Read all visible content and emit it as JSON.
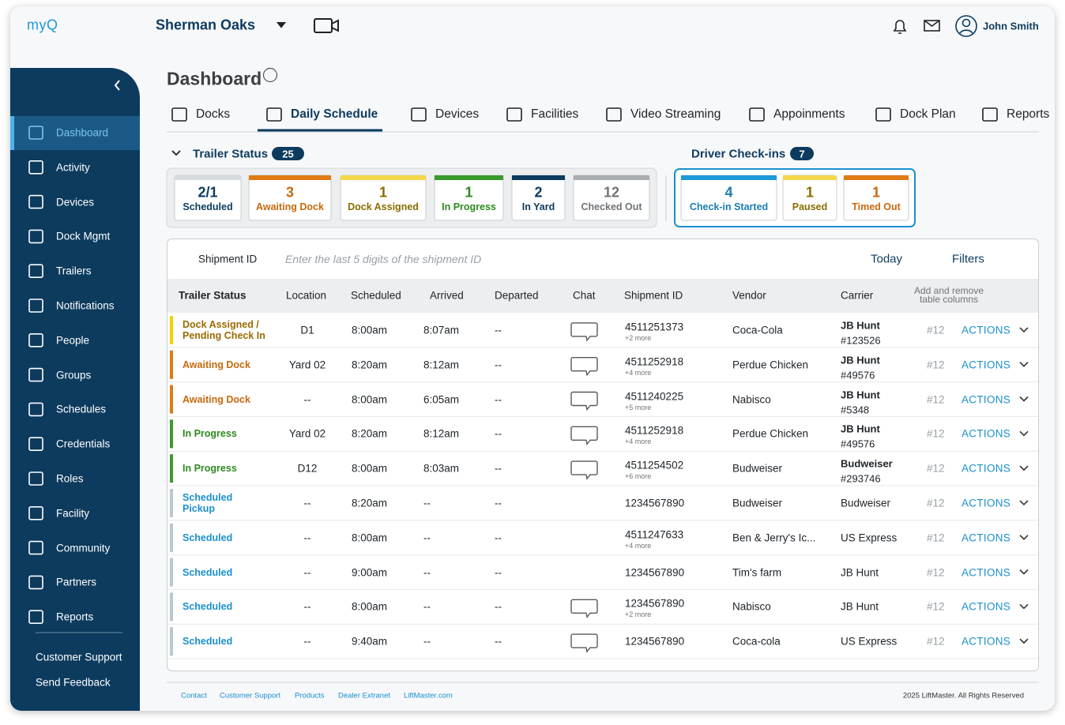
{
  "header": {
    "logo": "myQ",
    "location": "Sherman Oaks",
    "user": "John Smith"
  },
  "sidebar": {
    "items": [
      {
        "label": "Dashboard",
        "active": true
      },
      {
        "label": "Activity"
      },
      {
        "label": "Devices"
      },
      {
        "label": "Dock Mgmt"
      },
      {
        "label": "Trailers"
      },
      {
        "label": "Notifications"
      },
      {
        "label": "People"
      },
      {
        "label": "Groups"
      },
      {
        "label": "Schedules"
      },
      {
        "label": "Credentials"
      },
      {
        "label": "Roles"
      },
      {
        "label": "Facility"
      },
      {
        "label": "Community"
      },
      {
        "label": "Partners"
      },
      {
        "label": "Reports"
      }
    ],
    "links": [
      "Customer Support",
      "Send Feedback"
    ]
  },
  "page": {
    "title": "Dashboard",
    "tabs": [
      {
        "label": "Docks"
      },
      {
        "label": "Daily Schedule",
        "active": true
      },
      {
        "label": "Devices"
      },
      {
        "label": "Facilities"
      },
      {
        "label": "Video Streaming"
      },
      {
        "label": "Appoinments"
      },
      {
        "label": "Dock Plan"
      },
      {
        "label": "Reports"
      }
    ]
  },
  "trailer_status": {
    "title": "Trailer Status",
    "count": 25,
    "cards": [
      {
        "value": "2/1",
        "label": "Scheduled",
        "bar": "#d6dbe0",
        "color": "#0c3b5e"
      },
      {
        "value": 3,
        "label": "Awaiting Dock",
        "bar": "#df7b14",
        "color": "#c8690c"
      },
      {
        "value": 1,
        "label": "Dock Assigned",
        "bar": "#f4d84a",
        "color": "#8a6d00"
      },
      {
        "value": 1,
        "label": "In Progress",
        "bar": "#3a9a2c",
        "color": "#2e8a1f"
      },
      {
        "value": 2,
        "label": "In Yard",
        "bar": "#0c3b5e",
        "color": "#0c3b5e"
      },
      {
        "value": 12,
        "label": "Checked Out",
        "bar": "#a9adb1",
        "color": "#6f7478"
      }
    ]
  },
  "driver_checkins": {
    "title": "Driver Check-ins",
    "count": 7,
    "cards": [
      {
        "value": 4,
        "label": "Check-in Started",
        "bar": "#1c9ad6",
        "color": "#1b7db5"
      },
      {
        "value": 1,
        "label": "Paused",
        "bar": "#f4d84a",
        "color": "#8a6d00"
      },
      {
        "value": 1,
        "label": "Timed Out",
        "bar": "#df7b14",
        "color": "#c8690c"
      }
    ]
  },
  "search": {
    "field": "Shipment ID",
    "placeholder": "Enter the last 5 digits of the shipment ID",
    "date": "Today",
    "filters": "Filters"
  },
  "table": {
    "columns": [
      "Trailer Status",
      "Location",
      "Scheduled",
      "Arrived",
      "Departed",
      "Chat",
      "Shipment ID",
      "Vendor",
      "Carrier"
    ],
    "column_settings": "Add and remove\ntable columns",
    "rows": [
      {
        "status": "Dock Assigned /\nPending Check In",
        "color": "#f5d000",
        "text_color": "#9a6b00",
        "location": "D1",
        "scheduled": "8:00am",
        "arrived": "8:07am",
        "departed": "--",
        "chat": true,
        "shipment_id": "4511251373",
        "more": "+2 more",
        "vendor": "Coca-Cola",
        "carrier": "JB Hunt",
        "carrier_id": "#123526",
        "ref": "#12",
        "action": "ACTIONS"
      },
      {
        "status": "Awaiting Dock",
        "color": "#dd7a12",
        "text_color": "#c8690c",
        "location": "Yard 02",
        "scheduled": "8:20am",
        "arrived": "8:12am",
        "departed": "--",
        "chat": true,
        "shipment_id": "4511252918",
        "more": "+4 more",
        "vendor": "Perdue Chicken",
        "carrier": "JB Hunt",
        "carrier_id": "#49576",
        "ref": "#12",
        "action": "ACTIONS"
      },
      {
        "status": "Awaiting Dock",
        "color": "#dd7a12",
        "text_color": "#c8690c",
        "location": "--",
        "scheduled": "8:00am",
        "arrived": "6:05am",
        "departed": "--",
        "chat": true,
        "shipment_id": "4511240225",
        "more": "+5 more",
        "vendor": "Nabisco",
        "carrier": "JB Hunt",
        "carrier_id": "#5348",
        "ref": "#12",
        "action": "ACTIONS"
      },
      {
        "status": "In Progress",
        "color": "#3a9a2c",
        "text_color": "#2e8a1f",
        "location": "Yard 02",
        "scheduled": "8:20am",
        "arrived": "8:12am",
        "departed": "--",
        "chat": true,
        "shipment_id": "4511252918",
        "more": "+4 more",
        "vendor": "Perdue Chicken",
        "carrier": "JB Hunt",
        "carrier_id": "#49576",
        "ref": "#12",
        "action": "ACTIONS"
      },
      {
        "status": "In Progress",
        "color": "#3a9a2c",
        "text_color": "#2e8a1f",
        "location": "D12",
        "scheduled": "8:00am",
        "arrived": "8:03am",
        "departed": "--",
        "chat": true,
        "shipment_id": "4511254502",
        "more": "+6 more",
        "vendor": "Budweiser",
        "carrier": "Budweiser",
        "carrier_id": "#293746",
        "ref": "#12",
        "action": "ACTIONS"
      },
      {
        "status": "Scheduled\nPickup",
        "color": "#b9c7d2",
        "text_color": "#1b8fd0",
        "location": "--",
        "scheduled": "8:20am",
        "arrived": "--",
        "departed": "--",
        "chat": false,
        "shipment_id": "1234567890",
        "vendor": "Budweiser",
        "carrier": "Budweiser",
        "ref": "#12",
        "action": "ACTIONS"
      },
      {
        "status": "Scheduled",
        "color": "#b9c7d2",
        "text_color": "#1b8fd0",
        "location": "--",
        "scheduled": "8:00am",
        "arrived": "--",
        "departed": "--",
        "chat": false,
        "shipment_id": "4511247633",
        "more": "+4 more",
        "vendor": "Ben & Jerry's Ic...",
        "carrier": "US Express",
        "ref": "#12",
        "action": "ACTIONS"
      },
      {
        "status": "Scheduled",
        "color": "#b9c7d2",
        "text_color": "#1b8fd0",
        "location": "--",
        "scheduled": "9:00am",
        "arrived": "--",
        "departed": "--",
        "chat": false,
        "shipment_id": "1234567890",
        "vendor": "Tim's farm",
        "carrier": "JB Hunt",
        "ref": "#12",
        "action": "ACTIONS"
      },
      {
        "status": "Scheduled",
        "color": "#b9c7d2",
        "text_color": "#1b8fd0",
        "location": "--",
        "scheduled": "8:00am",
        "arrived": "--",
        "departed": "--",
        "chat": true,
        "shipment_id": "1234567890",
        "more": "+2 more",
        "vendor": "Nabisco",
        "carrier": "JB Hunt",
        "ref": "#12",
        "action": "ACTIONS"
      },
      {
        "status": "Scheduled",
        "color": "#b9c7d2",
        "text_color": "#1b8fd0",
        "location": "--",
        "scheduled": "9:40am",
        "arrived": "--",
        "departed": "--",
        "chat": true,
        "shipment_id": "1234567890",
        "vendor": "Coca-cola",
        "carrier": "US Express",
        "ref": "#12",
        "action": "ACTIONS"
      }
    ]
  },
  "footer": {
    "links": [
      "Contact",
      "Customer Support",
      "Products",
      "Dealer Extranet",
      "LiftMaster.com"
    ],
    "copyright": "2025 LiftMaster. All Rights Reserved"
  }
}
